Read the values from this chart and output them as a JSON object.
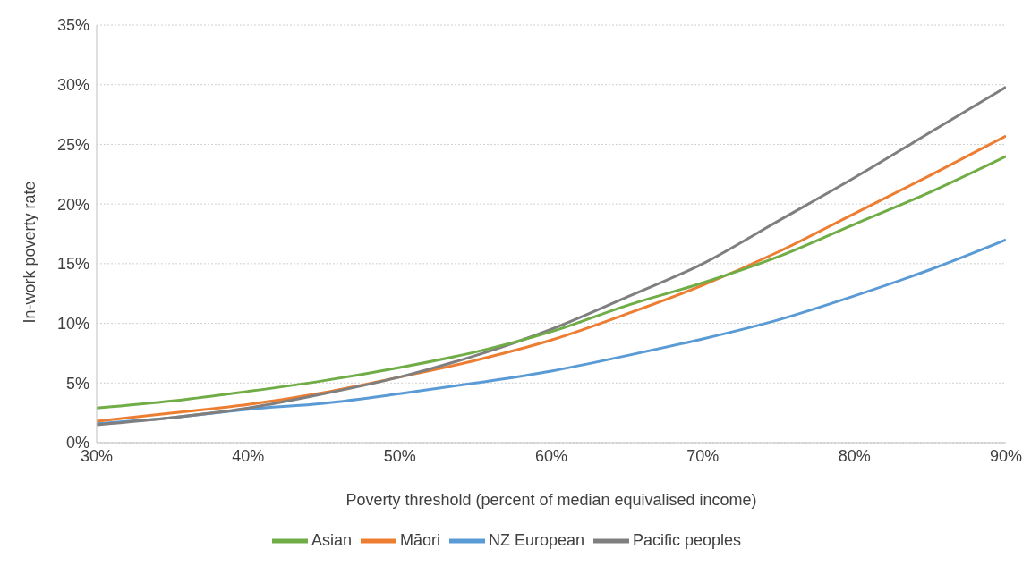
{
  "chart_data": {
    "type": "line",
    "xlabel": "Poverty threshold (percent of median equivalised income)",
    "ylabel": "In-work poverty rate",
    "x": [
      30,
      35,
      40,
      45,
      50,
      55,
      60,
      65,
      70,
      75,
      80,
      85,
      90
    ],
    "series": [
      {
        "name": "NZ European",
        "color": "#5b9bd5",
        "values": [
          1.6,
          2.1,
          2.8,
          3.3,
          4.1,
          5.0,
          6.0,
          7.3,
          8.7,
          10.3,
          12.3,
          14.5,
          17.0
        ]
      },
      {
        "name": "Māori",
        "color": "#ed7d31",
        "values": [
          1.8,
          2.5,
          3.2,
          4.2,
          5.5,
          6.9,
          8.6,
          10.8,
          13.2,
          16.0,
          19.2,
          22.4,
          25.7
        ]
      },
      {
        "name": "Pacific peoples",
        "color": "#7f7f7f",
        "values": [
          1.5,
          2.1,
          2.9,
          4.1,
          5.5,
          7.3,
          9.5,
          12.2,
          15.0,
          18.6,
          22.2,
          26.0,
          29.8
        ]
      },
      {
        "name": "Asian",
        "color": "#70ad47",
        "values": [
          2.9,
          3.5,
          4.3,
          5.2,
          6.3,
          7.6,
          9.3,
          11.5,
          13.4,
          15.6,
          18.3,
          21.0,
          24.0
        ]
      }
    ],
    "xlim": [
      30,
      90
    ],
    "xticks": [
      {
        "value": 30,
        "label": "30%"
      },
      {
        "value": 40,
        "label": "40%"
      },
      {
        "value": 50,
        "label": "50%"
      },
      {
        "value": 60,
        "label": "60%"
      },
      {
        "value": 70,
        "label": "70%"
      },
      {
        "value": 80,
        "label": "80%"
      },
      {
        "value": 90,
        "label": "90%"
      }
    ],
    "ylim": [
      0,
      35
    ],
    "yticks": [
      {
        "value": 0,
        "label": "0%"
      },
      {
        "value": 5,
        "label": "5%"
      },
      {
        "value": 10,
        "label": "10%"
      },
      {
        "value": 15,
        "label": "15%"
      },
      {
        "value": 20,
        "label": "20%"
      },
      {
        "value": 25,
        "label": "25%"
      },
      {
        "value": 30,
        "label": "30%"
      },
      {
        "value": 35,
        "label": "35%"
      }
    ],
    "grid": "y",
    "legend": "bottom",
    "marker": "none",
    "line_style": "solid"
  }
}
